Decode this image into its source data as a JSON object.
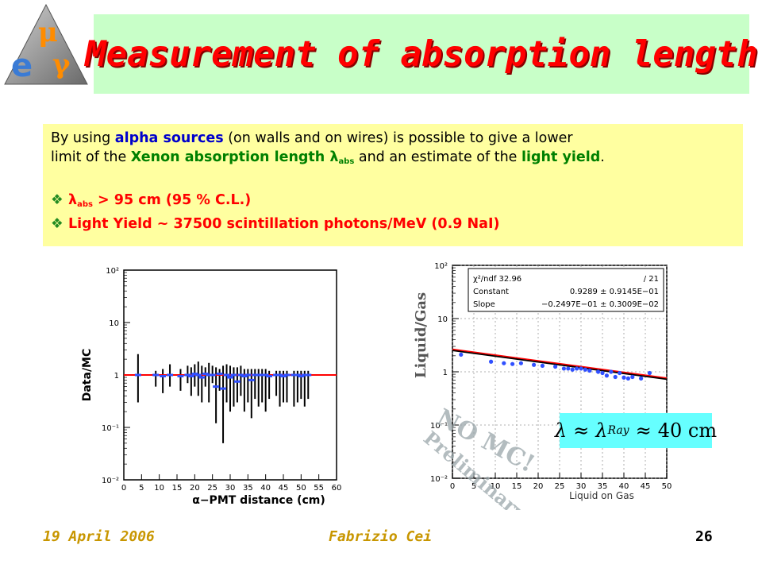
{
  "title": "Measurement of absorption length",
  "logo": {
    "letters": {
      "mu": "μ",
      "e": "e",
      "gamma": "γ"
    }
  },
  "intro": {
    "line1_pre": "By using ",
    "line1_alpha": "alpha sources",
    "line1_post": " (on walls and on wires) is possible to give a lower",
    "line2_pre": "limit of the ",
    "line2_xenon": "Xenon absorption length ",
    "lambda": "λ",
    "abs_sub": "abs",
    "line2_mid": " and an estimate of the ",
    "line2_ly": "light yield",
    "line2_end": "."
  },
  "bullets": {
    "icon": "❖",
    "b1_lambda": "λ",
    "b1_sub": "abs",
    "b1_text": " > 95 cm (95 % C.L.)",
    "b2_text": "Light Yield ~ 37500 scintillation photons/MeV (0.9 NaI)"
  },
  "left_plot": {
    "ylabel": "Data/MC",
    "xlabel": "α−PMT distance (cm)",
    "yticks": [
      "10²",
      "10",
      "1",
      "10⁻¹",
      "10⁻²"
    ],
    "xticks": [
      "0",
      "5",
      "10",
      "15",
      "20",
      "25",
      "30",
      "35",
      "40",
      "45",
      "50",
      "55",
      "60"
    ]
  },
  "right_plot": {
    "ylabel": "Liquid/Gas",
    "xlabel": "Liquid on Gas",
    "stats": {
      "row1_label": "χ²/ndf 32.96",
      "row1_value": "/   21",
      "row2_label": "Constant",
      "row2_value": "0.9289 ±  0.9145E−01",
      "row3_label": "Slope",
      "row3_value": "−0.2497E−01 ±  0.3009E−02"
    },
    "yticks": [
      "10²",
      "10",
      "1",
      "10⁻¹",
      "10⁻²"
    ],
    "xticks": [
      "0",
      "5",
      "10",
      "15",
      "20",
      "25",
      "30",
      "35",
      "40",
      "45",
      "50"
    ],
    "watermark1": "NO MC!",
    "watermark2": "Preliminary"
  },
  "ray_formula": "λ ≈ λRay ≈ 40 cm",
  "ray": {
    "lam1": "λ",
    "approx1": "≈",
    "lam2": "λ",
    "ray_sub": "Ray",
    "approx2": "≈",
    "value": "40 cm"
  },
  "footer": {
    "date": "19 April 2006",
    "author": "Fabrizio Cei",
    "page": "26"
  },
  "chart_data": [
    {
      "type": "scatter",
      "title": "",
      "xlabel": "α−PMT distance (cm)",
      "ylabel": "Data/MC",
      "yscale": "log",
      "xlim": [
        0,
        60
      ],
      "ylim": [
        0.01,
        100
      ],
      "fit_line": {
        "color": "#ff0000",
        "y": 1.0
      },
      "series": [
        {
          "x": [
            4,
            9,
            11,
            13,
            16,
            18,
            19,
            20,
            21,
            22,
            23,
            24,
            25,
            26,
            27,
            28,
            29,
            30,
            31,
            32,
            33,
            34,
            35,
            36,
            37,
            38,
            39,
            40,
            41,
            43,
            44,
            45,
            46,
            48,
            49,
            50,
            51,
            52
          ],
          "y": [
            1.0,
            1.0,
            0.95,
            1.0,
            0.95,
            1.0,
            0.95,
            1.05,
            1.0,
            0.9,
            1.05,
            1.0,
            1.0,
            0.6,
            1.05,
            0.55,
            1.0,
            0.9,
            1.0,
            0.75,
            1.0,
            0.95,
            1.0,
            0.8,
            1.0,
            1.0,
            1.0,
            1.0,
            0.95,
            1.0,
            1.0,
            0.95,
            1.0,
            1.0,
            1.0,
            0.95,
            1.0,
            1.0
          ],
          "ylo": [
            0.3,
            0.6,
            0.45,
            0.6,
            0.5,
            0.7,
            0.4,
            0.6,
            0.4,
            0.3,
            0.6,
            0.3,
            0.7,
            0.12,
            0.5,
            0.05,
            0.3,
            0.2,
            0.25,
            0.3,
            0.4,
            0.2,
            0.3,
            0.15,
            0.35,
            0.25,
            0.3,
            0.2,
            0.35,
            0.4,
            0.25,
            0.3,
            0.3,
            0.25,
            0.3,
            0.35,
            0.25,
            0.35
          ],
          "yhi": [
            2.5,
            1.2,
            1.3,
            1.6,
            1.3,
            1.5,
            1.4,
            1.6,
            1.8,
            1.5,
            1.4,
            1.7,
            1.5,
            1.4,
            1.3,
            1.5,
            1.6,
            1.5,
            1.4,
            1.4,
            1.5,
            1.3,
            1.3,
            1.3,
            1.3,
            1.3,
            1.3,
            1.3,
            1.2,
            1.2,
            1.2,
            1.2,
            1.2,
            1.2,
            1.2,
            1.2,
            1.2,
            1.2
          ]
        }
      ]
    },
    {
      "type": "scatter",
      "title": "",
      "xlabel": "Liquid on Gas",
      "ylabel": "Liquid/Gas",
      "yscale": "log",
      "xlim": [
        0,
        50
      ],
      "ylim": [
        0.01,
        100
      ],
      "fit": {
        "constant": 0.9289,
        "slope": -0.02497,
        "color": "#ff0000"
      },
      "series": [
        {
          "x": [
            2,
            9,
            12,
            14,
            16,
            19,
            21,
            24,
            26,
            27,
            28,
            29,
            30,
            31,
            32,
            34,
            35,
            36,
            37,
            38,
            39,
            40,
            41,
            42,
            44,
            46
          ],
          "y": [
            2.1,
            1.55,
            1.45,
            1.4,
            1.45,
            1.35,
            1.3,
            1.25,
            1.15,
            1.15,
            1.1,
            1.15,
            1.15,
            1.1,
            1.05,
            1.0,
            0.95,
            0.85,
            1.0,
            0.8,
            0.95,
            0.78,
            0.75,
            0.8,
            0.75,
            0.95
          ]
        }
      ]
    }
  ]
}
